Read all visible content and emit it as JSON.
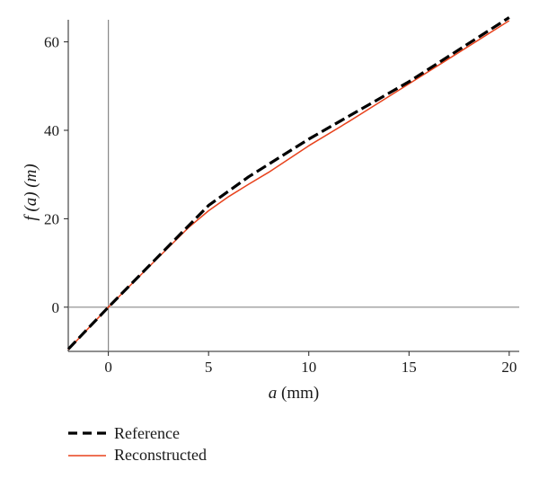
{
  "chart_data": {
    "type": "line",
    "xlabel": {
      "italic": "a",
      "rest": " (mm)"
    },
    "ylabel": {
      "italic": "f (a)",
      "rest": " (m)"
    },
    "xlim": [
      -2.0,
      20.5
    ],
    "ylim": [
      -10,
      65
    ],
    "xticks": [
      0,
      5,
      10,
      15,
      20
    ],
    "yticks": [
      0,
      20,
      40,
      60
    ],
    "grid": false,
    "zero_lines": true,
    "legend_position": "bottom-left",
    "series": [
      {
        "name": "Reference",
        "color": "#000000",
        "style": "dashed",
        "x": [
          -2.0,
          0,
          5.0,
          7,
          10,
          15,
          20.0
        ],
        "y": [
          -9.5,
          0,
          23,
          29.5,
          38,
          51,
          65.5
        ]
      },
      {
        "name": "Reconstructed",
        "color": "#e8421c",
        "style": "solid",
        "x": [
          -2.0,
          0,
          2,
          4,
          5,
          6,
          7,
          8,
          10,
          12,
          15,
          20.0
        ],
        "y": [
          -9.6,
          0,
          9,
          18,
          21.8,
          25,
          27.8,
          30.5,
          36.5,
          42,
          50.5,
          64.8
        ]
      }
    ]
  }
}
